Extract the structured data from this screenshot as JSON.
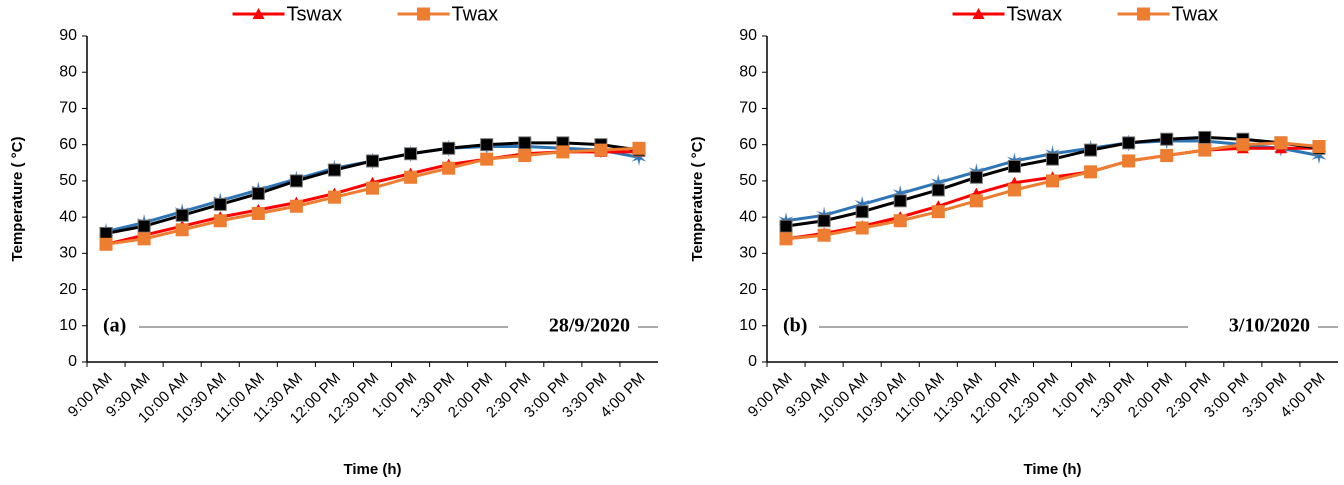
{
  "chart_data": [
    {
      "type": "line",
      "annotations": [
        "(a)",
        "28/9/2020"
      ],
      "xlabel": "Time (h)",
      "ylabel": "Temperature ( °C)",
      "categories": [
        "9:00 AM",
        "9:30 AM",
        "10:00 AM",
        "10:30 AM",
        "11:00 AM",
        "11:30 AM",
        "12:00 PM",
        "12:30 PM",
        "1:00 PM",
        "1:30 PM",
        "2:00 PM",
        "2:30 PM",
        "3:00 PM",
        "3:30 PM",
        "4:00 PM"
      ],
      "ylim": [
        0,
        90
      ],
      "yticks": [
        0,
        10,
        20,
        30,
        40,
        50,
        60,
        70,
        80,
        90
      ],
      "grid": false,
      "series": [
        {
          "color": "#2e75b6",
          "marker": "star",
          "values": [
            36,
            38.5,
            41.5,
            44.5,
            47.5,
            50.5,
            53.5,
            55.5,
            57.5,
            59,
            59.5,
            59.5,
            59,
            58.5,
            56.5
          ]
        },
        {
          "name": "Tswax",
          "color": "#ff0000",
          "marker": "triangle",
          "values": [
            32.5,
            35,
            37.5,
            40,
            42,
            44,
            46.5,
            49.5,
            52,
            54.5,
            56,
            57.5,
            58,
            58,
            58
          ]
        },
        {
          "color": "#000000",
          "marker": "square",
          "values": [
            35.5,
            37.5,
            40.5,
            43.5,
            46.5,
            50,
            53,
            55.5,
            57.5,
            59,
            60,
            60.5,
            60.5,
            60,
            58.5
          ]
        },
        {
          "name": "Twax",
          "color": "#ed7d31",
          "marker": "square",
          "values": [
            32.5,
            34,
            36.5,
            39,
            41,
            43,
            45.5,
            48,
            51,
            53.5,
            56,
            57,
            58,
            58.5,
            59
          ]
        }
      ]
    },
    {
      "type": "line",
      "annotations": [
        "(b)",
        "3/10/2020"
      ],
      "xlabel": "Time (h)",
      "ylabel": "Temperature ( °C)",
      "categories": [
        "9:00 AM",
        "9:30 AM",
        "10:00 AM",
        "10:30 AM",
        "11:00 AM",
        "11:30 AM",
        "12:00 PM",
        "12:30 PM",
        "1:00 PM",
        "1:30 PM",
        "2:00 PM",
        "2:30 PM",
        "3:00 PM",
        "3:30 PM",
        "4:00 PM"
      ],
      "ylim": [
        0,
        90
      ],
      "yticks": [
        0,
        10,
        20,
        30,
        40,
        50,
        60,
        70,
        80,
        90
      ],
      "grid": false,
      "series": [
        {
          "color": "#2e75b6",
          "marker": "star",
          "values": [
            39,
            40.5,
            43.5,
            46.5,
            49.5,
            52.5,
            55.5,
            57.5,
            59,
            60.5,
            61,
            61,
            60,
            59,
            57
          ]
        },
        {
          "name": "Tswax",
          "color": "#ff0000",
          "marker": "triangle",
          "values": [
            34,
            35.5,
            37.5,
            40,
            43,
            46.5,
            49.5,
            51,
            52.5,
            55.5,
            57,
            58.5,
            59,
            59,
            59
          ]
        },
        {
          "color": "#000000",
          "marker": "square",
          "values": [
            37.5,
            39,
            41.5,
            44.5,
            47.5,
            51,
            54,
            56,
            58.5,
            60.5,
            61.5,
            62,
            61.5,
            60.5,
            59
          ]
        },
        {
          "name": "Twax",
          "color": "#ed7d31",
          "marker": "square",
          "values": [
            34,
            35,
            37,
            39,
            41.5,
            44.5,
            47.5,
            50,
            52.5,
            55.5,
            57,
            58.5,
            60,
            60.5,
            59.5
          ]
        }
      ]
    }
  ]
}
